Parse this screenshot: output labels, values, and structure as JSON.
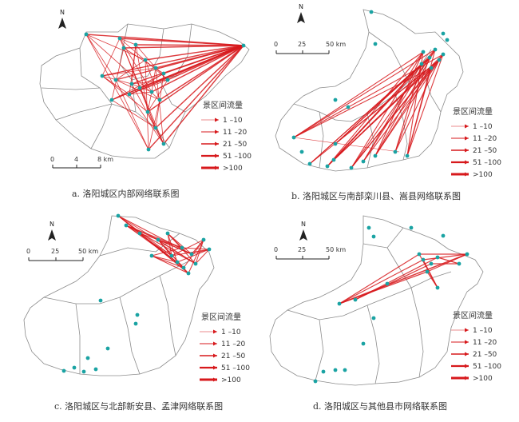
{
  "legend_title": "景区间流量",
  "legend_classes": [
    "1 –10",
    "11 –20",
    "21 –50",
    "51 –100",
    ">100"
  ],
  "flow_color": "#d7191c",
  "site_color": "#1aa3a3",
  "north_label": "N",
  "panels": [
    {
      "caption": "a. 洛阳城区内部网络联系图",
      "scale": {
        "labels": [
          "0",
          "4",
          "8 km"
        ]
      }
    },
    {
      "caption": "b. 洛阳城区与南部栾川县、嵩县网络联系图",
      "scale": {
        "labels": [
          "0",
          "25",
          "50 km"
        ]
      }
    },
    {
      "caption": "c. 洛阳城区与北部新安县、孟津网络联系图",
      "scale": {
        "labels": [
          "0",
          "25",
          "50 km"
        ]
      }
    },
    {
      "caption": "d. 洛阳城区与其他县市网络联系图",
      "scale": {
        "labels": [
          "0",
          "25",
          "50 km"
        ]
      }
    }
  ]
}
